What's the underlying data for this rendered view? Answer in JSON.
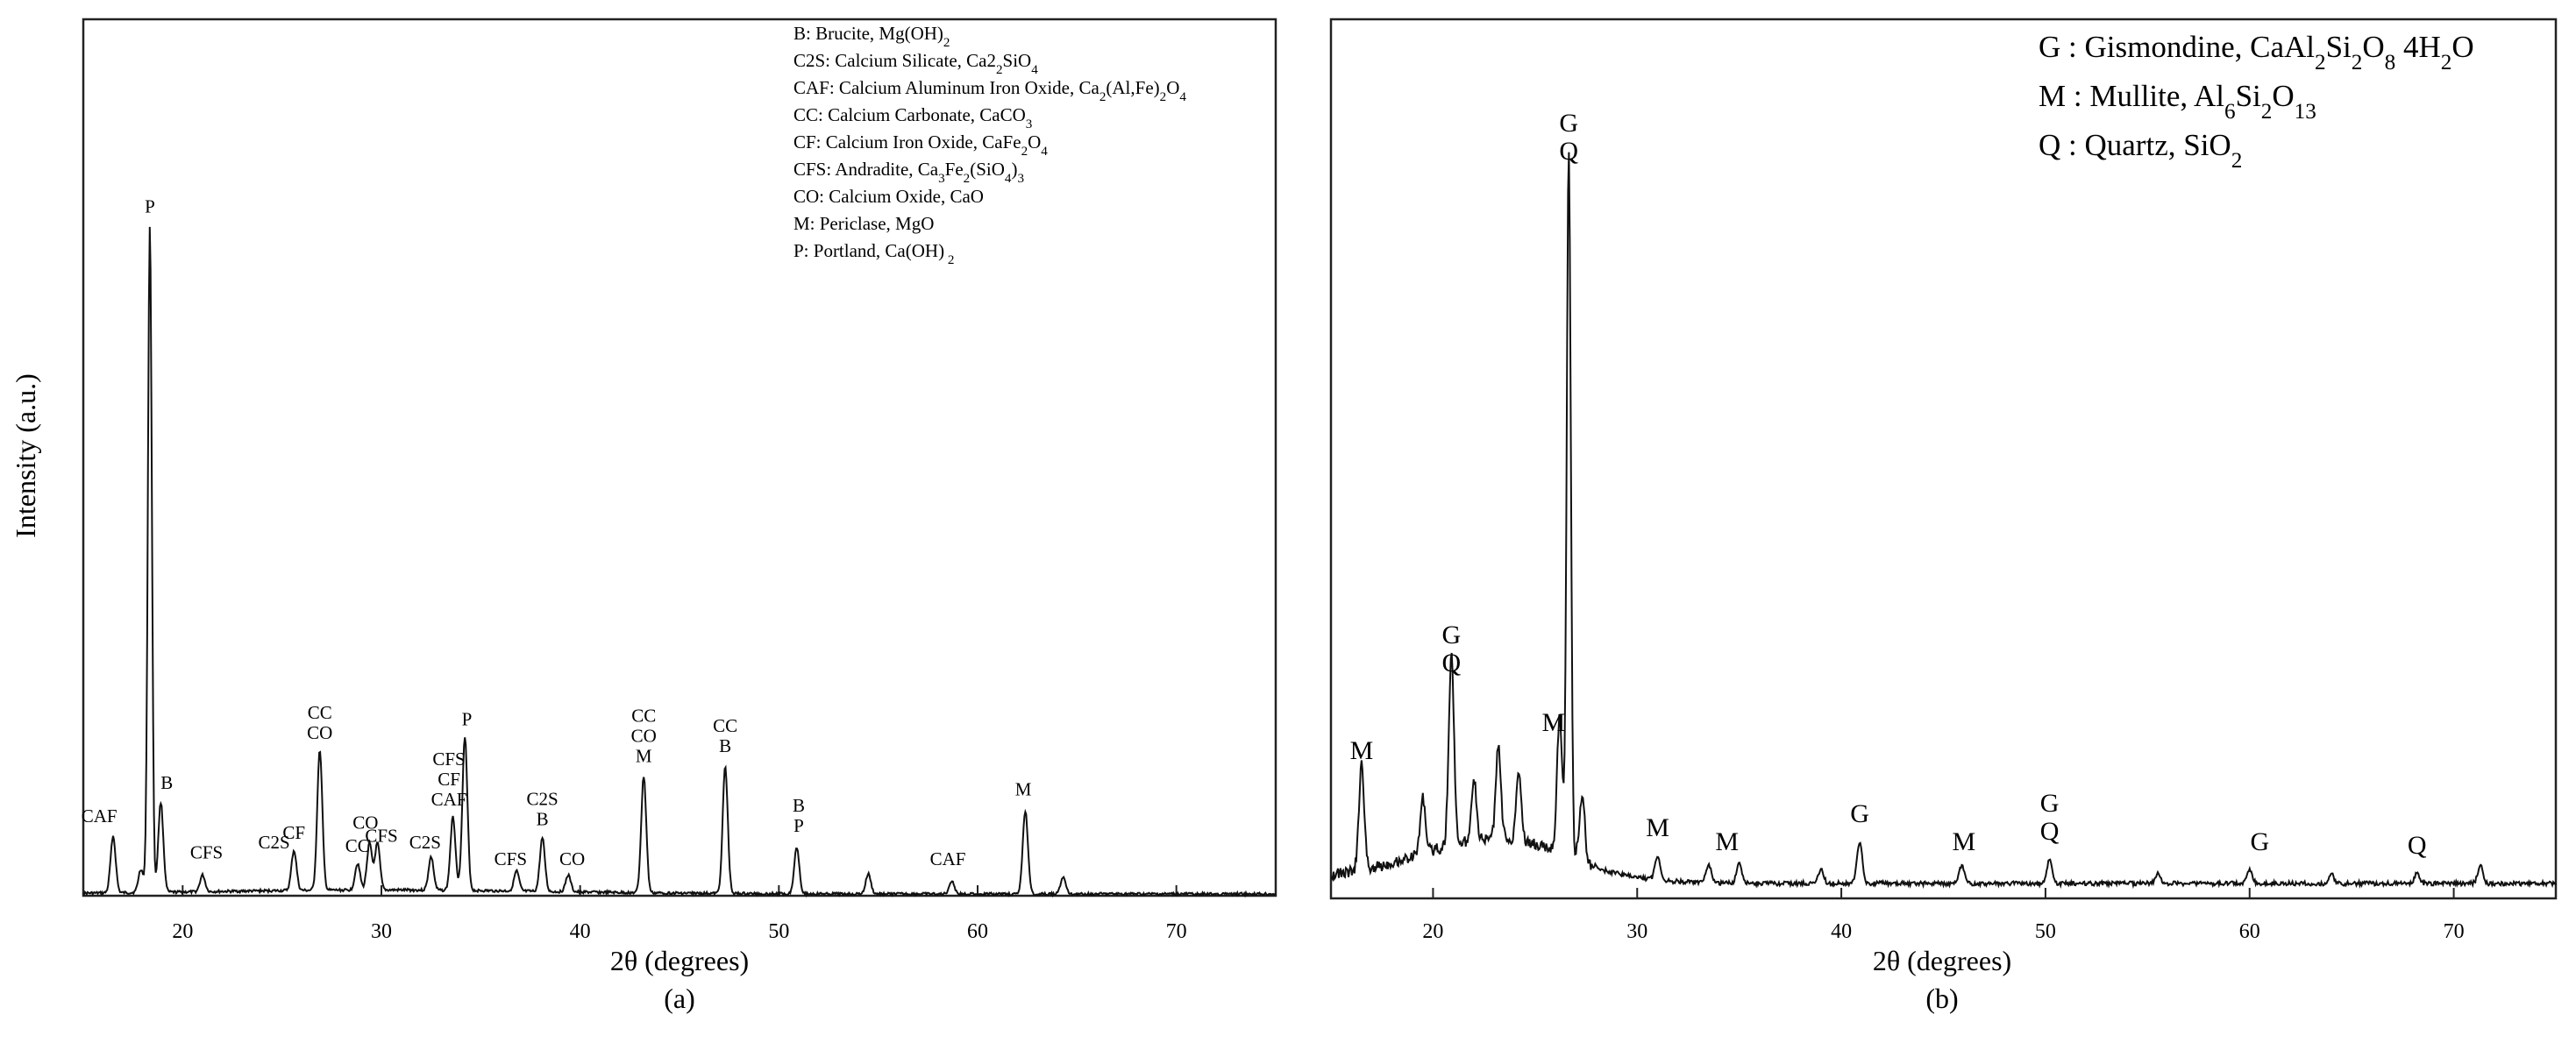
{
  "chart_data": [
    {
      "id": "a",
      "type": "line",
      "panel_label": "(a)",
      "xlabel": "2θ (degrees)",
      "ylabel": "Intensity (a.u.)",
      "xlim": [
        15,
        75
      ],
      "xticks": [
        20,
        30,
        40,
        50,
        60,
        70
      ],
      "ylim": [
        0,
        100
      ],
      "legend_position": "top-right",
      "legend": [
        {
          "text": "B: Brucite, Mg(OH)",
          "sub": "2",
          "tail": ""
        },
        {
          "text": "C2S: Calcium Silicate, Ca2",
          "sub": "2",
          "tail": "SiO",
          "sub2": "4"
        },
        {
          "text": "CAF: Calcium Aluminum Iron Oxide, Ca",
          "sub": "2",
          "tail": "(Al,Fe)",
          "sub2": "2",
          "tail2": "O",
          "sub3": "4"
        },
        {
          "text": "CC: Calcium Carbonate, CaCO",
          "sub": "3",
          "tail": ""
        },
        {
          "text": "CF: Calcium Iron Oxide, CaFe",
          "sub": "2",
          "tail": "O",
          "sub2": "4"
        },
        {
          "text": "CFS: Andradite, Ca",
          "sub": "3",
          "tail": "Fe",
          "sub2": "2",
          "tail2": "(SiO",
          "sub3": "4",
          "tail3": ")",
          "sub4": "3"
        },
        {
          "text": "CO: Calcium Oxide, CaO",
          "sub": "",
          "tail": ""
        },
        {
          "text": "M: Periclase, MgO",
          "sub": "",
          "tail": ""
        },
        {
          "text": "P: Portland, Ca(OH)",
          "sub": " 2",
          "tail": ""
        }
      ],
      "peaks": [
        {
          "x": 16.5,
          "y": 8.5
        },
        {
          "x": 17.9,
          "y": 3.5
        },
        {
          "x": 18.35,
          "y": 100
        },
        {
          "x": 18.9,
          "y": 13.5
        },
        {
          "x": 21.0,
          "y": 2.5
        },
        {
          "x": 25.6,
          "y": 6.0
        },
        {
          "x": 26.9,
          "y": 21.0
        },
        {
          "x": 28.8,
          "y": 4.0
        },
        {
          "x": 29.4,
          "y": 7.0
        },
        {
          "x": 29.8,
          "y": 7.0
        },
        {
          "x": 32.5,
          "y": 5.0
        },
        {
          "x": 33.6,
          "y": 11.0
        },
        {
          "x": 34.2,
          "y": 23.0
        },
        {
          "x": 36.8,
          "y": 3.0
        },
        {
          "x": 38.1,
          "y": 8.0
        },
        {
          "x": 39.4,
          "y": 2.5
        },
        {
          "x": 43.2,
          "y": 17.5
        },
        {
          "x": 47.3,
          "y": 19.0
        },
        {
          "x": 50.9,
          "y": 7.0
        },
        {
          "x": 54.5,
          "y": 3.0
        },
        {
          "x": 58.7,
          "y": 2.0
        },
        {
          "x": 62.4,
          "y": 12.5
        },
        {
          "x": 64.3,
          "y": 2.5
        }
      ],
      "annotations": [
        {
          "x": 15.8,
          "y": 9.5,
          "lines": [
            "CAF"
          ]
        },
        {
          "x": 19.2,
          "y": 14.5,
          "lines": [
            "B"
          ]
        },
        {
          "x": 21.2,
          "y": 4.0,
          "lines": [
            "CFS"
          ]
        },
        {
          "x": 18.35,
          "y": 101,
          "lines": [
            "P"
          ]
        },
        {
          "x": 25.6,
          "y": 7.0,
          "lines": [
            "CF"
          ]
        },
        {
          "x": 24.6,
          "y": 5.5,
          "lines": [
            "C2S"
          ]
        },
        {
          "x": 26.9,
          "y": 22.0,
          "lines": [
            "CC",
            "CO"
          ]
        },
        {
          "x": 28.8,
          "y": 5.0,
          "lines": [
            "CC"
          ]
        },
        {
          "x": 29.2,
          "y": 8.5,
          "lines": [
            "CO"
          ]
        },
        {
          "x": 30.0,
          "y": 6.5,
          "lines": [
            "CFS"
          ]
        },
        {
          "x": 32.2,
          "y": 5.5,
          "lines": [
            "C2S"
          ]
        },
        {
          "x": 33.4,
          "y": 12.0,
          "lines": [
            "CFS",
            "CF",
            "CAF"
          ]
        },
        {
          "x": 34.3,
          "y": 24.0,
          "lines": [
            "P"
          ]
        },
        {
          "x": 36.5,
          "y": 3.0,
          "lines": [
            "CFS"
          ]
        },
        {
          "x": 38.1,
          "y": 9.0,
          "lines": [
            "C2S",
            "B"
          ]
        },
        {
          "x": 39.6,
          "y": 3.0,
          "lines": [
            "CO"
          ]
        },
        {
          "x": 43.2,
          "y": 18.5,
          "lines": [
            "CC",
            "CO",
            "M"
          ]
        },
        {
          "x": 47.3,
          "y": 20.0,
          "lines": [
            "CC",
            "B"
          ]
        },
        {
          "x": 51.0,
          "y": 8.0,
          "lines": [
            "B",
            "P"
          ]
        },
        {
          "x": 58.5,
          "y": 3.0,
          "lines": [
            "CAF"
          ]
        },
        {
          "x": 62.3,
          "y": 13.5,
          "lines": [
            "M"
          ]
        }
      ]
    },
    {
      "id": "b",
      "type": "line",
      "panel_label": "(b)",
      "xlabel": "2θ (degrees)",
      "ylabel": "",
      "xlim": [
        15,
        75
      ],
      "xticks": [
        20,
        30,
        40,
        50,
        60,
        70
      ],
      "ylim": [
        0,
        100
      ],
      "legend_position": "top-right",
      "legend": [
        {
          "text": "G : Gismondine, CaAl",
          "sub": "2",
          "tail": "Si",
          "sub2": "2",
          "tail2": "O",
          "sub3": "8",
          "tail3": " 4H",
          "sub4": "2",
          "tail4": "O"
        },
        {
          "text": "M : Mullite, Al",
          "sub": "6",
          "tail": "Si",
          "sub2": "2",
          "tail2": "O",
          "sub3": "13"
        },
        {
          "text": "Q : Quartz, SiO",
          "sub": "2",
          "tail": ""
        }
      ],
      "peaks": [
        {
          "x": 16.5,
          "y": 15.0
        },
        {
          "x": 19.5,
          "y": 8.0
        },
        {
          "x": 20.9,
          "y": 27.0
        },
        {
          "x": 22.0,
          "y": 9.0
        },
        {
          "x": 23.2,
          "y": 13.0
        },
        {
          "x": 24.2,
          "y": 10.0
        },
        {
          "x": 26.2,
          "y": 19.0
        },
        {
          "x": 26.65,
          "y": 100
        },
        {
          "x": 27.3,
          "y": 9.0
        },
        {
          "x": 31.0,
          "y": 3.5
        },
        {
          "x": 33.5,
          "y": 2.5
        },
        {
          "x": 35.0,
          "y": 3.0
        },
        {
          "x": 39.0,
          "y": 2.0
        },
        {
          "x": 40.9,
          "y": 6.0
        },
        {
          "x": 45.9,
          "y": 2.5
        },
        {
          "x": 50.2,
          "y": 3.5
        },
        {
          "x": 55.5,
          "y": 1.5
        },
        {
          "x": 60.0,
          "y": 2.0
        },
        {
          "x": 64.0,
          "y": 1.5
        },
        {
          "x": 68.2,
          "y": 1.5
        },
        {
          "x": 71.3,
          "y": 2.5
        }
      ],
      "annotations": [
        {
          "x": 16.5,
          "y": 16.5,
          "lines": [
            "M"
          ]
        },
        {
          "x": 20.9,
          "y": 29.0,
          "lines": [
            "G",
            "Q"
          ]
        },
        {
          "x": 25.9,
          "y": 20.5,
          "lines": [
            "M"
          ]
        },
        {
          "x": 26.65,
          "y": 102,
          "lines": [
            "G",
            "Q"
          ]
        },
        {
          "x": 31.0,
          "y": 5.5,
          "lines": [
            "M"
          ]
        },
        {
          "x": 34.4,
          "y": 3.5,
          "lines": [
            "M"
          ]
        },
        {
          "x": 40.9,
          "y": 7.5,
          "lines": [
            "G"
          ]
        },
        {
          "x": 46.0,
          "y": 3.5,
          "lines": [
            "M"
          ]
        },
        {
          "x": 50.2,
          "y": 5.0,
          "lines": [
            "G",
            "Q"
          ]
        },
        {
          "x": 60.5,
          "y": 3.5,
          "lines": [
            "G"
          ]
        },
        {
          "x": 68.2,
          "y": 3.0,
          "lines": [
            "Q"
          ]
        }
      ]
    }
  ]
}
